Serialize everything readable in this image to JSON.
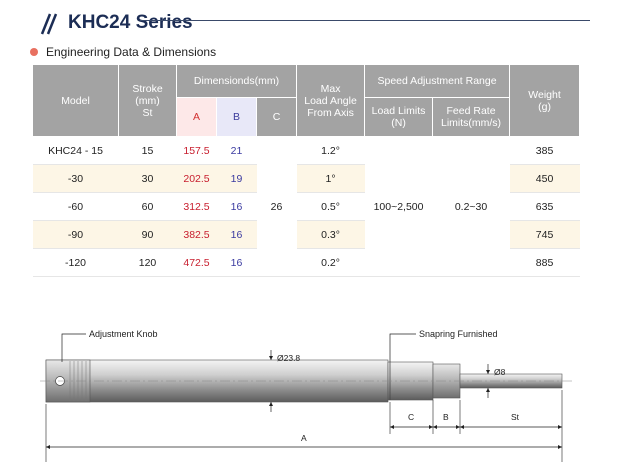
{
  "series": {
    "title": "KHC24 Series"
  },
  "section": {
    "label": "Engineering Data & Dimensions"
  },
  "colors": {
    "header_bg": "#a3a3a3",
    "accent_a": "#c81e2e",
    "accent_b": "#3a3aa0",
    "alt_row": "#fdf6e6",
    "title": "#1c2d55"
  },
  "table": {
    "headers": {
      "model": "Model",
      "stroke": "Stroke\n(mm)\nSt",
      "dimensions": "Dimensionds(mm)",
      "a": "A",
      "b": "B",
      "c": "C",
      "max_load_angle": "Max\nLoad Angle\nFrom Axis",
      "speed_adjustment_range": "Speed Adjustment Range",
      "load_limits": "Load Limits\n(N)",
      "feed_rate_limits": "Feed Rate\nLimits(mm/s)",
      "weight": "Weight\n(g)"
    },
    "rows": [
      {
        "model": "KHC24 - 15",
        "stroke": "15",
        "a": "157.5",
        "b": "21",
        "angle": "1.2°",
        "weight": "385"
      },
      {
        "model": "-30",
        "stroke": "30",
        "a": "202.5",
        "b": "19",
        "angle": "1°",
        "weight": "450"
      },
      {
        "model": "-60",
        "stroke": "60",
        "a": "312.5",
        "b": "16",
        "angle": "0.5°",
        "weight": "635"
      },
      {
        "model": "-90",
        "stroke": "90",
        "a": "382.5",
        "b": "16",
        "angle": "0.3°",
        "weight": "745"
      },
      {
        "model": "-120",
        "stroke": "120",
        "a": "472.5",
        "b": "16",
        "angle": "0.2°",
        "weight": "885"
      }
    ],
    "merged": {
      "c": "26",
      "load_limits": "100~2,500",
      "feed_rate": "0.2~30"
    }
  },
  "drawing": {
    "adjustment_knob_label": "Adjustment Knob",
    "snapring_label": "Snapring Furnished",
    "body_diameter_label": "Ø23.8",
    "rod_diameter_label": "Ø8",
    "dim_c_label": "C",
    "dim_b_label": "B",
    "dim_st_label": "St",
    "dim_a_label": "A"
  }
}
